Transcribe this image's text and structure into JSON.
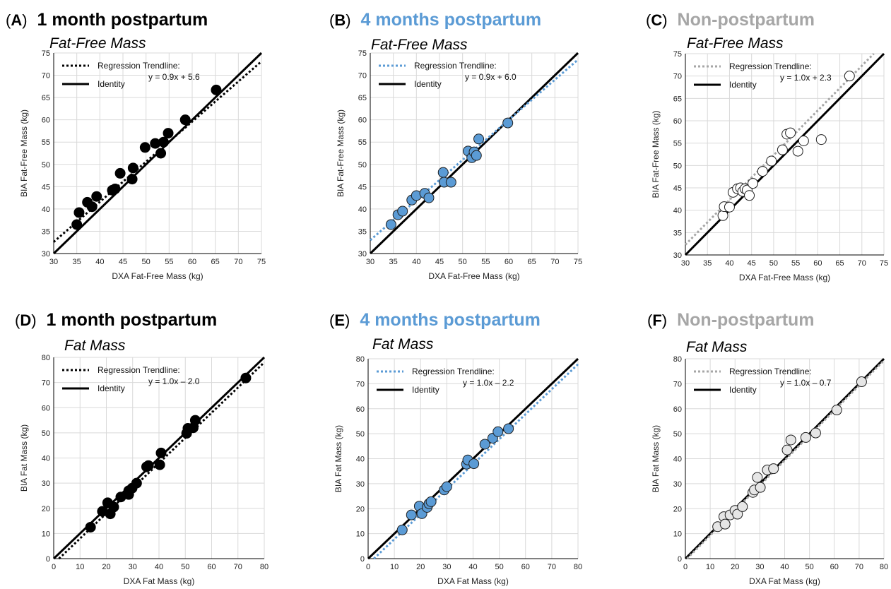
{
  "colors": {
    "black": "#000000",
    "blue": "#5b9bd5",
    "gray": "#a6a6a6",
    "blue_fill": "#5b9bd5",
    "gray_fill": "#e6e6e6"
  },
  "chart_data": [
    {
      "panel": "(A)",
      "heading": "1 month postpartum",
      "heading_color": "#000000",
      "subtitle": "Fat-Free Mass",
      "type": "scatter",
      "xlabel": "DXA Fat-Free Mass (kg)",
      "ylabel": "BIA Fat-Free Mass (kg)",
      "xlim": [
        30,
        75
      ],
      "ylim": [
        30,
        75
      ],
      "xticks": [
        30,
        35,
        40,
        45,
        50,
        55,
        60,
        65,
        70,
        75
      ],
      "yticks": [
        30,
        35,
        40,
        45,
        50,
        55,
        60,
        65,
        70,
        75
      ],
      "legend_regression": "Regression Trendline:",
      "legend_identity": "Identity",
      "equation": "y = 0.9x + 5.6",
      "regression": {
        "slope": 0.9,
        "intercept": 5.6
      },
      "trend_color": "#000000",
      "marker_fill": "#000000",
      "marker_stroke": "#000000",
      "points": [
        [
          35,
          36.5
        ],
        [
          35.5,
          39.2
        ],
        [
          37.3,
          41.5
        ],
        [
          38.3,
          40.5
        ],
        [
          39.3,
          42.8
        ],
        [
          42.7,
          44.2
        ],
        [
          43.3,
          44.5
        ],
        [
          44.4,
          48
        ],
        [
          47.2,
          49.2
        ],
        [
          47,
          46.7
        ],
        [
          49.8,
          53.8
        ],
        [
          52,
          54.7
        ],
        [
          53.2,
          52.5
        ],
        [
          53.8,
          55
        ],
        [
          54.8,
          57
        ],
        [
          58.5,
          60
        ],
        [
          65.2,
          66.7
        ]
      ]
    },
    {
      "panel": "(B)",
      "heading": "4 months postpartum",
      "heading_color": "#5b9bd5",
      "subtitle": "Fat-Free Mass",
      "type": "scatter",
      "xlabel": "DXA Fat-Free Mass (kg)",
      "ylabel": "BIA Fat-Free Mass (kg)",
      "xlim": [
        30,
        75
      ],
      "ylim": [
        30,
        75
      ],
      "xticks": [
        30,
        35,
        40,
        45,
        50,
        55,
        60,
        65,
        70,
        75
      ],
      "yticks": [
        30,
        35,
        40,
        45,
        50,
        55,
        60,
        65,
        70,
        75
      ],
      "legend_regression": "Regression Trendline:",
      "legend_identity": "Identity",
      "equation": "y = 0.9x + 6.0",
      "regression": {
        "slope": 0.9,
        "intercept": 6.0
      },
      "trend_color": "#5b9bd5",
      "marker_fill": "#5b9bd5",
      "marker_stroke": "#1f1f1f",
      "points": [
        [
          34.5,
          36.5
        ],
        [
          36,
          38.7
        ],
        [
          37,
          39.5
        ],
        [
          39,
          42
        ],
        [
          40,
          43
        ],
        [
          41.8,
          43.5
        ],
        [
          42.7,
          42.5
        ],
        [
          45.8,
          48.2
        ],
        [
          46,
          46
        ],
        [
          47.5,
          46
        ],
        [
          51.2,
          53
        ],
        [
          52,
          51.5
        ],
        [
          52.5,
          52.8
        ],
        [
          53,
          52
        ],
        [
          53.5,
          55.7
        ],
        [
          59.8,
          59.3
        ]
      ]
    },
    {
      "panel": "(C)",
      "heading": "Non-postpartum",
      "heading_color": "#a6a6a6",
      "subtitle": "Fat-Free Mass",
      "type": "scatter",
      "xlabel": "DXA Fat-Free Mass (kg)",
      "ylabel": "BIA Fat-Free Mass (kg)",
      "xlim": [
        30,
        75
      ],
      "ylim": [
        30,
        75
      ],
      "xticks": [
        30,
        35,
        40,
        45,
        50,
        55,
        60,
        65,
        70,
        75
      ],
      "yticks": [
        30,
        35,
        40,
        45,
        50,
        55,
        60,
        65,
        70,
        75
      ],
      "legend_regression": "Regression Trendline:",
      "legend_identity": "Identity",
      "equation": "y = 1.0x + 2.3",
      "regression": {
        "slope": 1.0,
        "intercept": 2.3
      },
      "trend_color": "#a6a6a6",
      "marker_fill": "#ffffff",
      "marker_stroke": "#1f1f1f",
      "points": [
        [
          38.5,
          38.8
        ],
        [
          38.8,
          40.8
        ],
        [
          40,
          40.7
        ],
        [
          40.8,
          44
        ],
        [
          41.8,
          44.8
        ],
        [
          42.5,
          45
        ],
        [
          43,
          44.2
        ],
        [
          43.5,
          44.8
        ],
        [
          44,
          44.5
        ],
        [
          44.5,
          43.3
        ],
        [
          45.3,
          46
        ],
        [
          47.5,
          48.7
        ],
        [
          49.5,
          51
        ],
        [
          52,
          53.5
        ],
        [
          53,
          57
        ],
        [
          53.8,
          57.3
        ],
        [
          55.5,
          53.2
        ],
        [
          56.8,
          55.5
        ],
        [
          60.8,
          55.8
        ],
        [
          67.2,
          70
        ]
      ]
    },
    {
      "panel": "(D)",
      "heading": "1 month postpartum",
      "heading_color": "#000000",
      "subtitle": "Fat Mass",
      "type": "scatter",
      "xlabel": "DXA Fat Mass (kg)",
      "ylabel": "BIA Fat Mass (kg)",
      "xlim": [
        0,
        80
      ],
      "ylim": [
        0,
        80
      ],
      "xticks": [
        0,
        10,
        20,
        30,
        40,
        50,
        60,
        70,
        80
      ],
      "yticks": [
        0,
        10,
        20,
        30,
        40,
        50,
        60,
        70,
        80
      ],
      "legend_regression": "Regression Trendline:",
      "legend_identity": "Identity",
      "equation": "y = 1.0x – 2.0",
      "regression": {
        "slope": 1.0,
        "intercept": -2.0
      },
      "trend_color": "#000000",
      "marker_fill": "#000000",
      "marker_stroke": "#000000",
      "points": [
        [
          14,
          12.5
        ],
        [
          18.5,
          18.8
        ],
        [
          20.5,
          22.2
        ],
        [
          21.5,
          17.8
        ],
        [
          22.8,
          20.5
        ],
        [
          25.5,
          24.5
        ],
        [
          28.5,
          25.5
        ],
        [
          28.5,
          27
        ],
        [
          29.8,
          28
        ],
        [
          31.5,
          30
        ],
        [
          35.3,
          36.5
        ],
        [
          36,
          37
        ],
        [
          40.3,
          37.3
        ],
        [
          40.8,
          42
        ],
        [
          50.5,
          49.8
        ],
        [
          51,
          51.8
        ],
        [
          53,
          52
        ],
        [
          53.8,
          55
        ],
        [
          73,
          71.8
        ]
      ]
    },
    {
      "panel": "(E)",
      "heading": "4 months postpartum",
      "heading_color": "#5b9bd5",
      "subtitle": "Fat Mass",
      "type": "scatter",
      "xlabel": "DXA Fat Mass (kg)",
      "ylabel": "BIA Fat Mass (kg)",
      "xlim": [
        0,
        80
      ],
      "ylim": [
        0,
        80
      ],
      "xticks": [
        0,
        10,
        20,
        30,
        40,
        50,
        60,
        70,
        80
      ],
      "yticks": [
        0,
        10,
        20,
        30,
        40,
        50,
        60,
        70,
        80
      ],
      "legend_regression": "Regression Trendline:",
      "legend_identity": "Identity",
      "equation": "y = 1.0x – 2.2",
      "regression": {
        "slope": 1.0,
        "intercept": -2.2
      },
      "trend_color": "#5b9bd5",
      "marker_fill": "#5b9bd5",
      "marker_stroke": "#1f1f1f",
      "points": [
        [
          13,
          11.5
        ],
        [
          16.5,
          17.5
        ],
        [
          19.5,
          21
        ],
        [
          20.5,
          18
        ],
        [
          22.5,
          20.5
        ],
        [
          23.2,
          22
        ],
        [
          24,
          22.8
        ],
        [
          29,
          27.5
        ],
        [
          30,
          28.8
        ],
        [
          37.5,
          37.8
        ],
        [
          38,
          39.5
        ],
        [
          40.3,
          38
        ],
        [
          44.5,
          45.8
        ],
        [
          47.5,
          48.2
        ],
        [
          49.5,
          50.8
        ],
        [
          53.5,
          52
        ]
      ]
    },
    {
      "panel": "(F)",
      "heading": "Non-postpartum",
      "heading_color": "#a6a6a6",
      "subtitle": "Fat Mass",
      "type": "scatter",
      "xlabel": "DXA Fat Mass (kg)",
      "ylabel": "BIA Fat Mass (kg)",
      "xlim": [
        0,
        80
      ],
      "ylim": [
        0,
        80
      ],
      "xticks": [
        0,
        10,
        20,
        30,
        40,
        50,
        60,
        70,
        80
      ],
      "yticks": [
        0,
        10,
        20,
        30,
        40,
        50,
        60,
        70,
        80
      ],
      "legend_regression": "Regression Trendline:",
      "legend_identity": "Identity",
      "equation": "y = 1.0x – 0.7",
      "regression": {
        "slope": 1.0,
        "intercept": -0.7
      },
      "trend_color": "#a6a6a6",
      "marker_fill": "#e6e6e6",
      "marker_stroke": "#1f1f1f",
      "points": [
        [
          13,
          12.8
        ],
        [
          15.5,
          16.8
        ],
        [
          16,
          13.8
        ],
        [
          18,
          17.5
        ],
        [
          20,
          19.3
        ],
        [
          21,
          17.8
        ],
        [
          23,
          20.8
        ],
        [
          27.2,
          26.5
        ],
        [
          27.8,
          27.5
        ],
        [
          29,
          32.5
        ],
        [
          30.2,
          28.5
        ],
        [
          33,
          35.5
        ],
        [
          35.5,
          36
        ],
        [
          41,
          43.5
        ],
        [
          42.5,
          47.5
        ],
        [
          48.5,
          48.5
        ],
        [
          52.5,
          50.3
        ],
        [
          61,
          59.5
        ],
        [
          71,
          70.8
        ]
      ]
    }
  ]
}
